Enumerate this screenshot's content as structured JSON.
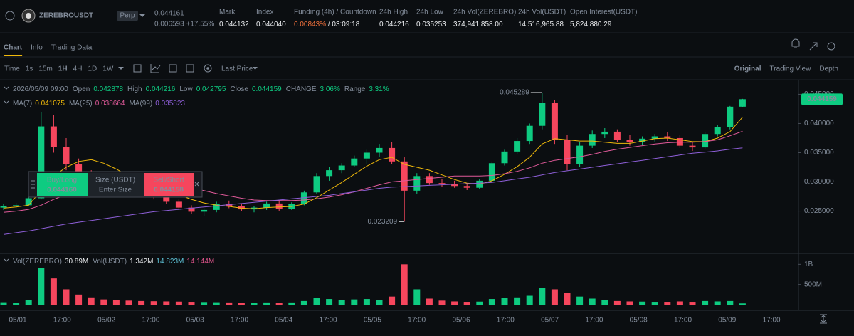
{
  "header": {
    "symbol": "ZEREBROUSDT",
    "badge": "Perp",
    "price": "0.044161",
    "change": "0.006593 +17.55%",
    "stats": [
      {
        "label": "Mark",
        "value": "0.044132"
      },
      {
        "label": "Index",
        "value": "0.044040"
      },
      {
        "label": "Funding (4h) / Countdown",
        "value": "0.00843%",
        "extra": " / 03:09:18"
      },
      {
        "label": "24h High",
        "value": "0.044216"
      },
      {
        "label": "24h Low",
        "value": "0.035253"
      },
      {
        "label": "24h Vol(ZEREBRO)",
        "value": "374,941,858.00"
      },
      {
        "label": "24h Vol(USDT)",
        "value": "14,516,965.88"
      },
      {
        "label": "Open Interest(USDT)",
        "value": "5,824,880.29"
      }
    ]
  },
  "tabs": [
    "Chart",
    "Info",
    "Trading Data"
  ],
  "toolbar": {
    "intervals": [
      "Time",
      "1s",
      "15m",
      "1H",
      "4H",
      "1D",
      "1W"
    ],
    "price_type": "Last Price",
    "views": [
      "Original",
      "Trading View",
      "Depth"
    ]
  },
  "info": {
    "date": "2026/05/09 09:00",
    "fields": [
      {
        "label": "Open",
        "value": "0.042878"
      },
      {
        "label": "High",
        "value": "0.044216"
      },
      {
        "label": "Low",
        "value": "0.042795"
      },
      {
        "label": "Close",
        "value": "0.044159"
      },
      {
        "label": "CHANGE",
        "value": "3.06%"
      },
      {
        "label": "Range",
        "value": "3.31%"
      }
    ]
  },
  "order_widget": {
    "buy": "Buy/Long",
    "buy_price": "0.044160",
    "size": "Size (USDT)",
    "placeholder": "Enter Size",
    "sell": "Sell/Short",
    "sell_price": "0.044158"
  },
  "vol_legend": [
    {
      "label": "Vol(ZEREBRO)",
      "value": "30.89M"
    },
    {
      "label": "Vol(USDT)",
      "value": "1.342M"
    },
    {
      "value": "14.823M",
      "color": "#5fc4d9"
    },
    {
      "value": "14.144M",
      "color": "#e0548c"
    }
  ],
  "chart_data": [
    {
      "type": "candlestick",
      "open": [
        0.0256,
        0.0258,
        0.026,
        0.0272,
        0.0395,
        0.036,
        0.033,
        0.031,
        0.0302,
        0.0298,
        0.0292,
        0.0288,
        0.0282,
        0.0275,
        0.0266,
        0.0256,
        0.0249,
        0.0252,
        0.0262,
        0.0258,
        0.0253,
        0.0256,
        0.0263,
        0.0254,
        0.0262,
        0.0282,
        0.031,
        0.032,
        0.0328,
        0.034,
        0.035,
        0.0358,
        0.0335,
        0.0285,
        0.031,
        0.0298,
        0.0296,
        0.0293,
        0.029,
        0.0302,
        0.0332,
        0.0352,
        0.037,
        0.0396,
        0.0435,
        0.0372,
        0.033,
        0.0362,
        0.0382,
        0.0386,
        0.0372,
        0.0368,
        0.0374,
        0.0378,
        0.0375,
        0.0362,
        0.0359,
        0.0382,
        0.0394,
        0.042878
      ],
      "high": [
        0.0262,
        0.0264,
        0.0275,
        0.042,
        0.0415,
        0.0375,
        0.034,
        0.032,
        0.031,
        0.0305,
        0.03,
        0.0295,
        0.0288,
        0.028,
        0.027,
        0.026,
        0.0255,
        0.0266,
        0.0268,
        0.0262,
        0.0259,
        0.0266,
        0.0268,
        0.0265,
        0.0285,
        0.0315,
        0.0325,
        0.0332,
        0.0345,
        0.0355,
        0.0365,
        0.0368,
        0.0342,
        0.0315,
        0.0315,
        0.0305,
        0.0302,
        0.0298,
        0.0305,
        0.0335,
        0.0355,
        0.0375,
        0.04,
        0.045289,
        0.044,
        0.038,
        0.0368,
        0.0388,
        0.0392,
        0.039,
        0.038,
        0.0378,
        0.0382,
        0.0385,
        0.038,
        0.0368,
        0.0385,
        0.0398,
        0.043,
        0.044216
      ],
      "low": [
        0.0252,
        0.0255,
        0.0258,
        0.027,
        0.035,
        0.032,
        0.0305,
        0.0298,
        0.0295,
        0.0288,
        0.0285,
        0.0278,
        0.027,
        0.0262,
        0.0252,
        0.0245,
        0.0242,
        0.0248,
        0.0255,
        0.025,
        0.0248,
        0.0252,
        0.025,
        0.0252,
        0.026,
        0.028,
        0.0302,
        0.0315,
        0.0325,
        0.033,
        0.0342,
        0.033,
        0.023209,
        0.028,
        0.0295,
        0.0292,
        0.029,
        0.0286,
        0.0288,
        0.03,
        0.0328,
        0.0348,
        0.0365,
        0.039,
        0.0365,
        0.032,
        0.0325,
        0.0358,
        0.0375,
        0.0368,
        0.0362,
        0.0364,
        0.0369,
        0.037,
        0.0358,
        0.0353,
        0.0357,
        0.0378,
        0.039,
        0.042795
      ],
      "close": [
        0.0258,
        0.026,
        0.0272,
        0.0395,
        0.036,
        0.033,
        0.031,
        0.0302,
        0.0298,
        0.0292,
        0.0288,
        0.0282,
        0.0275,
        0.0266,
        0.0256,
        0.0249,
        0.0252,
        0.0262,
        0.0258,
        0.0253,
        0.0256,
        0.0263,
        0.0254,
        0.0262,
        0.0282,
        0.031,
        0.032,
        0.0328,
        0.034,
        0.035,
        0.0358,
        0.0335,
        0.0285,
        0.031,
        0.0298,
        0.0296,
        0.0293,
        0.029,
        0.0302,
        0.0332,
        0.0352,
        0.037,
        0.0396,
        0.0435,
        0.0372,
        0.033,
        0.0362,
        0.0382,
        0.0386,
        0.0372,
        0.0368,
        0.0374,
        0.0378,
        0.0375,
        0.0362,
        0.0359,
        0.0382,
        0.0394,
        0.042878,
        0.044159
      ],
      "up_color": "#0ecb81",
      "down_color": "#f6465d",
      "series": [
        {
          "name": "MA(7)",
          "last": "0.041075",
          "color": "#f0b90b",
          "values": [
            0.0255,
            0.0257,
            0.026,
            0.0285,
            0.031,
            0.0325,
            0.0335,
            0.0338,
            0.0332,
            0.0322,
            0.031,
            0.03,
            0.0292,
            0.0286,
            0.0278,
            0.027,
            0.0264,
            0.026,
            0.0258,
            0.0255,
            0.0254,
            0.0256,
            0.0257,
            0.0258,
            0.0262,
            0.0273,
            0.0286,
            0.0299,
            0.0313,
            0.0327,
            0.0338,
            0.0342,
            0.033,
            0.0325,
            0.032,
            0.0312,
            0.0304,
            0.0298,
            0.0296,
            0.0302,
            0.0313,
            0.0326,
            0.0342,
            0.0365,
            0.0374,
            0.0372,
            0.037,
            0.037,
            0.0368,
            0.0366,
            0.0366,
            0.037,
            0.0374,
            0.0375,
            0.0372,
            0.0369,
            0.0369,
            0.0375,
            0.0386,
            0.041075
          ]
        },
        {
          "name": "MA(25)",
          "last": "0.038664",
          "color": "#e15a9a",
          "values": [
            0.0248,
            0.025,
            0.0253,
            0.026,
            0.027,
            0.0278,
            0.0284,
            0.0289,
            0.0292,
            0.0294,
            0.0295,
            0.0295,
            0.0295,
            0.0294,
            0.0292,
            0.0289,
            0.0285,
            0.028,
            0.0276,
            0.0272,
            0.0269,
            0.0268,
            0.0268,
            0.0268,
            0.0269,
            0.0271,
            0.0274,
            0.0278,
            0.0283,
            0.0289,
            0.0295,
            0.03,
            0.0302,
            0.0304,
            0.0306,
            0.0308,
            0.031,
            0.031,
            0.031,
            0.0311,
            0.0314,
            0.0318,
            0.0324,
            0.0332,
            0.0337,
            0.034,
            0.0343,
            0.0347,
            0.0352,
            0.0356,
            0.0359,
            0.0362,
            0.0365,
            0.0367,
            0.0368,
            0.0368,
            0.0369,
            0.0372,
            0.0379,
            0.038664
          ]
        },
        {
          "name": "MA(99)",
          "last": "0.035823",
          "color": "#8e5fd8",
          "values": [
            0.021,
            0.0213,
            0.0216,
            0.022,
            0.0224,
            0.0228,
            0.0231,
            0.0234,
            0.0237,
            0.024,
            0.0243,
            0.0246,
            0.0249,
            0.0251,
            0.0253,
            0.0255,
            0.0257,
            0.0259,
            0.0261,
            0.0263,
            0.0265,
            0.0267,
            0.0269,
            0.0271,
            0.0273,
            0.0275,
            0.0277,
            0.028,
            0.0283,
            0.0286,
            0.0289,
            0.0291,
            0.0292,
            0.0293,
            0.0294,
            0.0295,
            0.0296,
            0.0297,
            0.0298,
            0.0299,
            0.0302,
            0.0305,
            0.0308,
            0.0312,
            0.0316,
            0.0319,
            0.0322,
            0.0325,
            0.0328,
            0.0331,
            0.0334,
            0.0337,
            0.034,
            0.0343,
            0.0346,
            0.0349,
            0.0351,
            0.0353,
            0.0356,
            0.035823
          ]
        }
      ],
      "max_label": 0.045289,
      "min_label": 0.023209,
      "price_tag": 0.044159,
      "ylim": [
        0.018,
        0.047
      ],
      "yticks": [
        {
          "value": 0.025,
          "label": "0.025000"
        },
        {
          "value": 0.03,
          "label": "0.030000"
        },
        {
          "value": 0.035,
          "label": "0.035000"
        },
        {
          "value": 0.04,
          "label": "0.040000"
        },
        {
          "value": 0.045,
          "label": "0.045000"
        }
      ],
      "grid": false
    },
    {
      "type": "bar",
      "values": [
        60000000,
        50000000,
        120000000,
        900000000,
        650000000,
        380000000,
        250000000,
        180000000,
        130000000,
        110000000,
        100000000,
        90000000,
        85000000,
        80000000,
        75000000,
        70000000,
        65000000,
        60000000,
        55000000,
        50000000,
        50000000,
        55000000,
        50000000,
        55000000,
        90000000,
        160000000,
        140000000,
        120000000,
        130000000,
        140000000,
        120000000,
        200000000,
        1000000000,
        380000000,
        150000000,
        100000000,
        80000000,
        70000000,
        75000000,
        140000000,
        160000000,
        180000000,
        220000000,
        420000000,
        380000000,
        300000000,
        200000000,
        150000000,
        110000000,
        90000000,
        80000000,
        75000000,
        70000000,
        70000000,
        80000000,
        70000000,
        90000000,
        80000000,
        90000000,
        30890000
      ],
      "ylim": [
        0,
        1200000000
      ],
      "yticks": [
        {
          "value": 500000000,
          "label": "500M"
        },
        {
          "value": 1000000000,
          "label": "1B"
        }
      ],
      "x_labels": [
        "05/01",
        "17:00",
        "05/02",
        "17:00",
        "05/03",
        "17:00",
        "05/04",
        "17:00",
        "05/05",
        "17:00",
        "05/06",
        "17:00",
        "05/07",
        "17:00",
        "05/08",
        "17:00",
        "05/09",
        "17:00"
      ]
    }
  ]
}
